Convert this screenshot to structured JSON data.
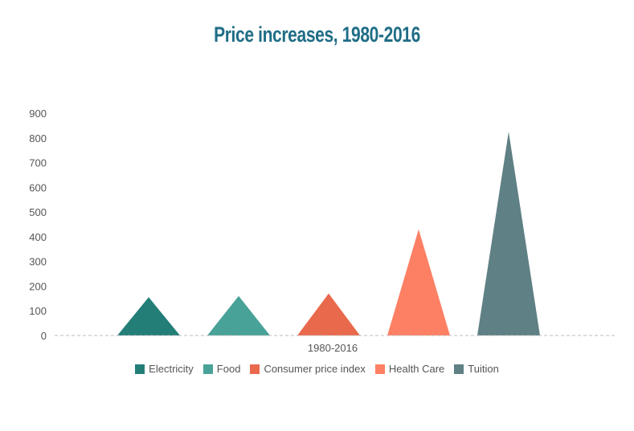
{
  "chart_data": {
    "type": "bar",
    "title": "Price increases, 1980-2016",
    "categories": [
      "1980-2016"
    ],
    "series": [
      {
        "name": "Electricity",
        "values": [
          155
        ],
        "color": "#237e78"
      },
      {
        "name": "Food",
        "values": [
          160
        ],
        "color": "#48a298"
      },
      {
        "name": "Consumer price index",
        "values": [
          170
        ],
        "color": "#e9694d"
      },
      {
        "name": "Health Care",
        "values": [
          430
        ],
        "color": "#fd8064"
      },
      {
        "name": "Tuition",
        "values": [
          825
        ],
        "color": "#5f8084"
      }
    ],
    "ylim": [
      0,
      900
    ],
    "yticks": [
      0,
      100,
      200,
      300,
      400,
      500,
      600,
      700,
      800,
      900
    ],
    "xlabel": "",
    "ylabel": "",
    "legend_position": "bottom",
    "grid": false,
    "mark_shape": "triangle"
  }
}
